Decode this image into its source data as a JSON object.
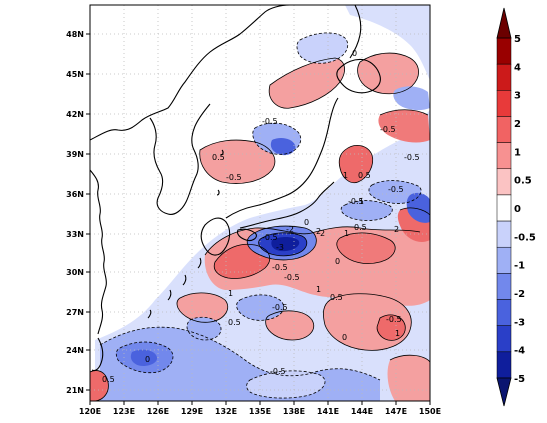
{
  "map": {
    "x_axis": {
      "labels": [
        "120E",
        "123E",
        "126E",
        "129E",
        "132E",
        "135E",
        "138E",
        "141E",
        "144E",
        "147E",
        "150E"
      ],
      "range": [
        120,
        150
      ]
    },
    "y_axis": {
      "labels": [
        "21N",
        "24N",
        "27N",
        "30N",
        "33N",
        "36N",
        "39N",
        "42N",
        "45N",
        "48N"
      ],
      "range": [
        19.5,
        50
      ]
    },
    "grid": "dotted"
  },
  "colorbar": {
    "labels": [
      "5",
      "4",
      "3",
      "2",
      "1",
      "0.5",
      "0",
      "-0.5",
      "-1",
      "-2",
      "-3",
      "-4",
      "-5"
    ],
    "colors": [
      "#990000",
      "#cc1a1a",
      "#e83a3a",
      "#f16363",
      "#f79191",
      "#fbc3c3",
      "#ffffff",
      "#c9d2fb",
      "#9fb0f5",
      "#7288ec",
      "#4a62de",
      "#2a3fc8",
      "#0f1e9c"
    ],
    "tip_top": "#6b0000",
    "tip_bottom": "#0a1570"
  },
  "contour_labels": [
    {
      "text": "0"
    },
    {
      "text": "0.5"
    },
    {
      "text": "-0.5"
    },
    {
      "text": "-0.5"
    },
    {
      "text": "-0.5"
    },
    {
      "text": "0.5"
    },
    {
      "text": "1"
    },
    {
      "text": "-0.5"
    },
    {
      "text": "-0.5"
    },
    {
      "text": "-1"
    },
    {
      "text": "-0.5"
    },
    {
      "text": "0.5"
    },
    {
      "text": "2"
    },
    {
      "text": "1"
    },
    {
      "text": "-0.5"
    },
    {
      "text": "0.5"
    },
    {
      "text": "-0.5"
    },
    {
      "text": "-0.5"
    },
    {
      "text": "1"
    },
    {
      "text": "0.5"
    },
    {
      "text": "-0.5"
    },
    {
      "text": "0"
    },
    {
      "text": "0"
    },
    {
      "text": "0.5"
    },
    {
      "text": "1"
    },
    {
      "text": "-0.5"
    },
    {
      "text": "-2"
    },
    {
      "text": "-3"
    },
    {
      "text": "2"
    },
    {
      "text": "1"
    },
    {
      "text": "-0.5"
    },
    {
      "text": "0"
    },
    {
      "text": "2"
    },
    {
      "text": "0"
    }
  ]
}
